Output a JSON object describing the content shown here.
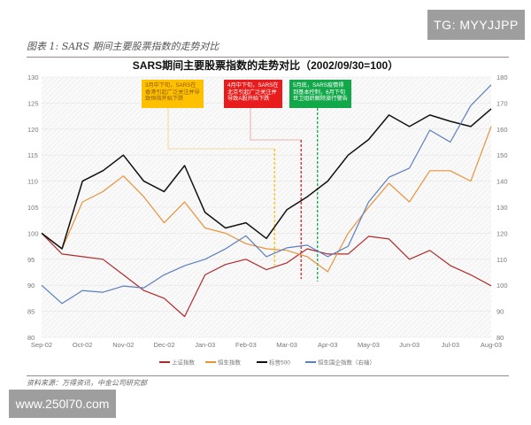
{
  "watermarks": {
    "top": "TG: MYYJJPP",
    "bottom": "www.250l70.com"
  },
  "figure_label": "图表 1: SARS 期间主要股票指数的走势对比",
  "source": "资料来源：万得资讯，中金公司研究部",
  "chart_data": {
    "type": "line",
    "title": "SARS期间主要股票指数的走势对比（2002/09/30=100）",
    "xlabel": "",
    "ylabel_left": "",
    "ylabel_right": "",
    "x_ticks": [
      "Sep-02",
      "Oct-02",
      "Nov-02",
      "Dec-02",
      "Jan-03",
      "Feb-03",
      "Mar-03",
      "Apr-03",
      "May-03",
      "Jun-03",
      "Jul-03",
      "Aug-03"
    ],
    "x": [
      0,
      0.5,
      1,
      1.5,
      2,
      2.5,
      3,
      3.5,
      4,
      4.5,
      5,
      5.5,
      6,
      6.5,
      7,
      7.5,
      8,
      8.5,
      9,
      9.5,
      10,
      10.5,
      11
    ],
    "ylim_left": [
      80,
      130
    ],
    "yticks_left": [
      80,
      85,
      90,
      95,
      100,
      105,
      110,
      115,
      120,
      125,
      130
    ],
    "ylim_right": [
      80,
      180
    ],
    "yticks_right": [
      80,
      90,
      100,
      110,
      120,
      130,
      140,
      150,
      160,
      170,
      180
    ],
    "grid": true,
    "legend_position": "bottom",
    "series": [
      {
        "name": "上证指数",
        "axis": "left",
        "color": "#b22a2a",
        "values": [
          100,
          96,
          95.5,
          95,
          92,
          89,
          87.5,
          84,
          92,
          94,
          95,
          93,
          94.3,
          97,
          96,
          96,
          99.4,
          98.9,
          95,
          96.7,
          93.8,
          92,
          89.9
        ]
      },
      {
        "name": "恒生指数",
        "axis": "left",
        "color": "#e8923a",
        "values": [
          100,
          97,
          106,
          108,
          111,
          107,
          102,
          106,
          101,
          100,
          98,
          97,
          96.7,
          95.5,
          92.6,
          100,
          105,
          109.6,
          106,
          112,
          112,
          110,
          120.5
        ]
      },
      {
        "name": "标普500",
        "axis": "left",
        "color": "#111111",
        "values": [
          100,
          97,
          110,
          112,
          115,
          110,
          108,
          113,
          104,
          101,
          102,
          99,
          104.5,
          107,
          110,
          115,
          118,
          122.7,
          120.5,
          122.7,
          121.5,
          120.5,
          123.9
        ]
      },
      {
        "name": "恒生国企指数（右轴）",
        "axis": "right",
        "color": "#5b7fbf",
        "values": [
          100,
          93,
          98,
          97.3,
          99.7,
          99,
          104,
          107.5,
          110,
          114,
          119,
          111,
          114.4,
          115.4,
          111,
          115,
          132,
          141.5,
          145,
          159.6,
          155,
          169,
          177
        ]
      }
    ],
    "annotations": [
      {
        "text": "3月中下旬，SARS在香港引起广泛关注并导致恒指开始下跌",
        "color": "#ffc000",
        "event_x": 5.7
      },
      {
        "text": "4月中下旬，SARS在北京引起广泛关注并导致A股开始下跌",
        "color": "#e81c1c",
        "event_x": 6.35
      },
      {
        "text": "5月底，SARS疫情得到基本控制，6月下旬世卫组织解除旅行警告",
        "color": "#12a84a",
        "event_x": 6.75
      }
    ]
  }
}
